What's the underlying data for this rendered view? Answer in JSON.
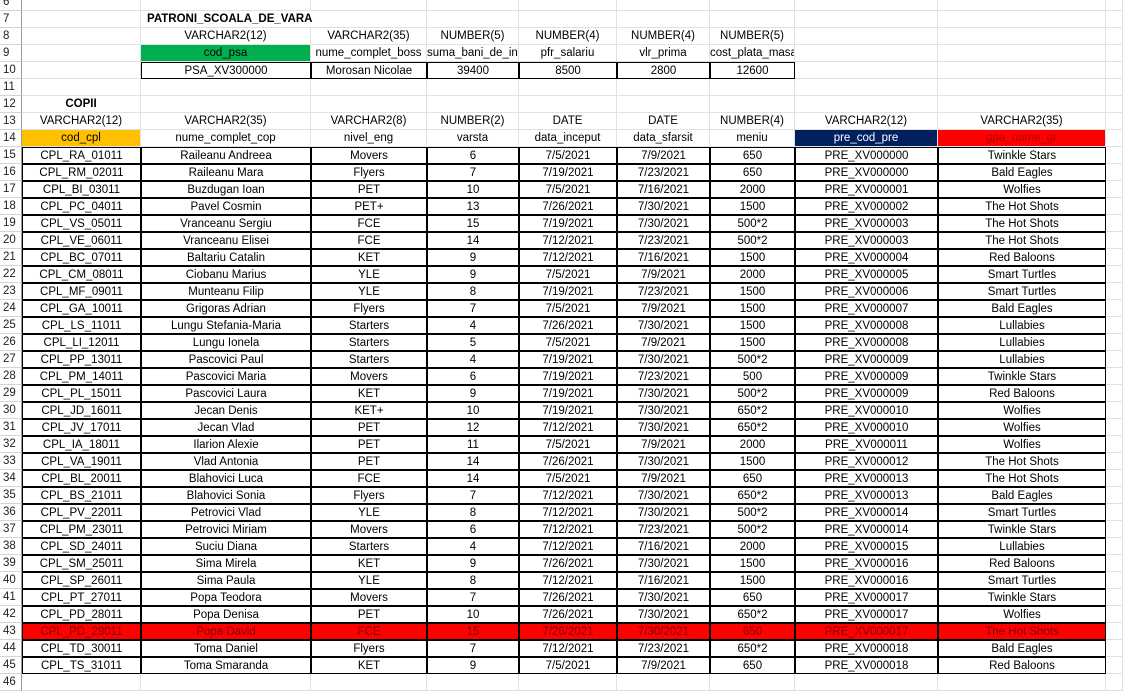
{
  "row_numbers": [
    "6",
    "7",
    "8",
    "9",
    "10",
    "11",
    "12",
    "13",
    "14",
    "15",
    "16",
    "17",
    "18",
    "19",
    "20",
    "21",
    "22",
    "23",
    "24",
    "25",
    "26",
    "27",
    "28",
    "29",
    "30",
    "31",
    "32",
    "33",
    "34",
    "35",
    "36",
    "37",
    "38",
    "39",
    "40",
    "41",
    "42",
    "43",
    "44",
    "45",
    "46"
  ],
  "patroni": {
    "title": "PATRONI_SCOALA_DE_VARA",
    "types": [
      "VARCHAR2(12)",
      "VARCHAR2(35)",
      "NUMBER(5)",
      "NUMBER(4)",
      "NUMBER(4)",
      "NUMBER(5)"
    ],
    "headers": [
      "cod_psa",
      "nume_complet_boss",
      "suma_bani_de_incasat",
      "pfr_salariu",
      "vlr_prima",
      "cost_plata_masa"
    ],
    "values": [
      "PSA_XV300000",
      "Morosan Nicolae",
      "39400",
      "8500",
      "2800",
      "12600"
    ]
  },
  "copii": {
    "title": "COPII",
    "types": [
      "VARCHAR2(12)",
      "VARCHAR2(35)",
      "VARCHAR2(8)",
      "NUMBER(2)",
      "DATE",
      "DATE",
      "NUMBER(4)",
      "VARCHAR2(12)",
      "VARCHAR2(35)"
    ],
    "headers": [
      "cod_cpl",
      "nume_complet_cop",
      "nivel_eng",
      "varsta",
      "data_inceput",
      "data_sfarsit",
      "meniu",
      "pre_cod_pre",
      "gpa_nume_gr"
    ],
    "rows": [
      [
        "CPL_RA_01011",
        "Raileanu Andreea",
        "Movers",
        "6",
        "7/5/2021",
        "7/9/2021",
        "650",
        "PRE_XV000000",
        "Twinkle Stars"
      ],
      [
        "CPL_RM_02011",
        "Raileanu Mara",
        "Flyers",
        "7",
        "7/19/2021",
        "7/23/2021",
        "650",
        "PRE_XV000000",
        "Bald Eagles"
      ],
      [
        "CPL_BI_03011",
        "Buzdugan Ioan",
        "PET",
        "10",
        "7/5/2021",
        "7/16/2021",
        "2000",
        "PRE_XV000001",
        "Wolfies"
      ],
      [
        "CPL_PC_04011",
        "Pavel Cosmin",
        "PET+",
        "13",
        "7/26/2021",
        "7/30/2021",
        "1500",
        "PRE_XV000002",
        "The Hot Shots"
      ],
      [
        "CPL_VS_05011",
        "Vranceanu Sergiu",
        "FCE",
        "15",
        "7/19/2021",
        "7/30/2021",
        "500*2",
        "PRE_XV000003",
        "The Hot Shots"
      ],
      [
        "CPL_VE_06011",
        "Vranceanu Elisei",
        "FCE",
        "14",
        "7/12/2021",
        "7/23/2021",
        "500*2",
        "PRE_XV000003",
        "The Hot Shots"
      ],
      [
        "CPL_BC_07011",
        "Baltariu Catalin",
        "KET",
        "9",
        "7/12/2021",
        "7/16/2021",
        "1500",
        "PRE_XV000004",
        "Red Baloons"
      ],
      [
        "CPL_CM_08011",
        "Ciobanu Marius",
        "YLE",
        "9",
        "7/5/2021",
        "7/9/2021",
        "2000",
        "PRE_XV000005",
        "Smart Turtles"
      ],
      [
        "CPL_MF_09011",
        "Munteanu Filip",
        "YLE",
        "8",
        "7/19/2021",
        "7/23/2021",
        "1500",
        "PRE_XV000006",
        "Smart Turtles"
      ],
      [
        "CPL_GA_10011",
        "Grigoras Adrian",
        "Flyers",
        "7",
        "7/5/2021",
        "7/9/2021",
        "1500",
        "PRE_XV000007",
        "Bald Eagles"
      ],
      [
        "CPL_LS_11011",
        "Lungu Stefania-Maria",
        "Starters",
        "4",
        "7/26/2021",
        "7/30/2021",
        "1500",
        "PRE_XV000008",
        "Lullabies"
      ],
      [
        "CPL_LI_12011",
        "Lungu Ionela",
        "Starters",
        "5",
        "7/5/2021",
        "7/9/2021",
        "1500",
        "PRE_XV000008",
        "Lullabies"
      ],
      [
        "CPL_PP_13011",
        "Pascovici Paul",
        "Starters",
        "4",
        "7/19/2021",
        "7/30/2021",
        "500*2",
        "PRE_XV000009",
        "Lullabies"
      ],
      [
        "CPL_PM_14011",
        "Pascovici Maria",
        "Movers",
        "6",
        "7/19/2021",
        "7/23/2021",
        "500",
        "PRE_XV000009",
        "Twinkle Stars"
      ],
      [
        "CPL_PL_15011",
        "Pascovici Laura",
        "KET",
        "9",
        "7/19/2021",
        "7/30/2021",
        "500*2",
        "PRE_XV000009",
        "Red Baloons"
      ],
      [
        "CPL_JD_16011",
        "Jecan Denis",
        "KET+",
        "10",
        "7/19/2021",
        "7/30/2021",
        "650*2",
        "PRE_XV000010",
        "Wolfies"
      ],
      [
        "CPL_JV_17011",
        "Jecan Vlad",
        "PET",
        "12",
        "7/12/2021",
        "7/30/2021",
        "650*2",
        "PRE_XV000010",
        "Wolfies"
      ],
      [
        "CPL_IA_18011",
        "Ilarion Alexie",
        "PET",
        "11",
        "7/5/2021",
        "7/9/2021",
        "2000",
        "PRE_XV000011",
        "Wolfies"
      ],
      [
        "CPL_VA_19011",
        "Vlad Antonia",
        "PET",
        "14",
        "7/26/2021",
        "7/30/2021",
        "1500",
        "PRE_XV000012",
        "The Hot Shots"
      ],
      [
        "CPL_BL_20011",
        "Blahovici Luca",
        "FCE",
        "14",
        "7/5/2021",
        "7/9/2021",
        "650",
        "PRE_XV000013",
        "The Hot Shots"
      ],
      [
        "CPL_BS_21011",
        "Blahovici Sonia",
        "Flyers",
        "7",
        "7/12/2021",
        "7/30/2021",
        "650*2",
        "PRE_XV000013",
        "Bald Eagles"
      ],
      [
        "CPL_PV_22011",
        "Petrovici Vlad",
        "YLE",
        "8",
        "7/12/2021",
        "7/30/2021",
        "500*2",
        "PRE_XV000014",
        "Smart Turtles"
      ],
      [
        "CPL_PM_23011",
        "Petrovici Miriam",
        "Movers",
        "6",
        "7/12/2021",
        "7/23/2021",
        "500*2",
        "PRE_XV000014",
        "Twinkle Stars"
      ],
      [
        "CPL_SD_24011",
        "Suciu Diana",
        "Starters",
        "4",
        "7/12/2021",
        "7/16/2021",
        "2000",
        "PRE_XV000015",
        "Lullabies"
      ],
      [
        "CPL_SM_25011",
        "Sima Mirela",
        "KET",
        "9",
        "7/26/2021",
        "7/30/2021",
        "1500",
        "PRE_XV000016",
        "Red Baloons"
      ],
      [
        "CPL_SP_26011",
        "Sima Paula",
        "YLE",
        "8",
        "7/12/2021",
        "7/16/2021",
        "1500",
        "PRE_XV000016",
        "Smart Turtles"
      ],
      [
        "CPL_PT_27011",
        "Popa Teodora",
        "Movers",
        "7",
        "7/26/2021",
        "7/30/2021",
        "650",
        "PRE_XV000017",
        "Twinkle Stars"
      ],
      [
        "CPL_PD_28011",
        "Popa Denisa",
        "PET",
        "10",
        "7/26/2021",
        "7/30/2021",
        "650*2",
        "PRE_XV000017",
        "Wolfies"
      ],
      [
        "CPL_PD_29011",
        "Popa David",
        "FCE",
        "15",
        "7/26/2021",
        "7/30/2021",
        "650",
        "PRE_XV000017",
        "The Hot Shots"
      ],
      [
        "CPL_TD_30011",
        "Toma Daniel",
        "Flyers",
        "7",
        "7/12/2021",
        "7/23/2021",
        "650*2",
        "PRE_XV000018",
        "Bald Eagles"
      ],
      [
        "CPL_TS_31011",
        "Toma Smaranda",
        "KET",
        "9",
        "7/5/2021",
        "7/9/2021",
        "650",
        "PRE_XV000018",
        "Red Baloons"
      ]
    ]
  },
  "colors": {
    "header_cod_psa": "#00b050",
    "header_cod_cpl": "#ffc000",
    "header_pre_cod_pre": "#002060",
    "header_gpa_nume_gr": "#ff0000",
    "highlight_row": "#ff0000"
  }
}
